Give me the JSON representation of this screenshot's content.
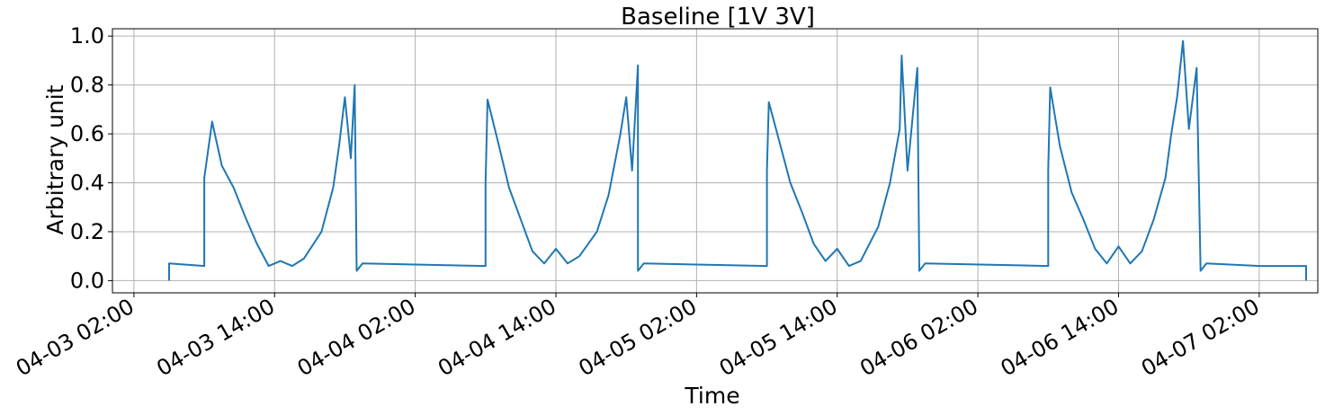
{
  "chart_data": {
    "type": "line",
    "title": "Baseline [1V 3V]",
    "xlabel": "Time",
    "ylabel": "Arbitrary unit",
    "xlim": [
      "2025-04-03T00:10",
      "2025-04-07T07:00"
    ],
    "ylim": [
      -0.05,
      1.03
    ],
    "grid": true,
    "x_ticks": [
      {
        "t": "2025-04-03T02:00",
        "label": "04-03 02:00"
      },
      {
        "t": "2025-04-03T14:00",
        "label": "04-03 14:00"
      },
      {
        "t": "2025-04-04T02:00",
        "label": "04-04 02:00"
      },
      {
        "t": "2025-04-04T14:00",
        "label": "04-04 14:00"
      },
      {
        "t": "2025-04-05T02:00",
        "label": "04-05 02:00"
      },
      {
        "t": "2025-04-05T14:00",
        "label": "04-05 14:00"
      },
      {
        "t": "2025-04-06T02:00",
        "label": "04-06 02:00"
      },
      {
        "t": "2025-04-06T14:00",
        "label": "04-06 14:00"
      },
      {
        "t": "2025-04-07T02:00",
        "label": "04-07 02:00"
      }
    ],
    "y_ticks": [
      0.0,
      0.2,
      0.4,
      0.6,
      0.8,
      1.0
    ],
    "y_tick_labels": [
      "0.0",
      "0.2",
      "0.4",
      "0.6",
      "0.8",
      "1.0"
    ],
    "series": [
      {
        "color": "#1f77b4",
        "points": [
          [
            "2025-04-03T05:00",
            0.0
          ],
          [
            "2025-04-03T05:00",
            0.07
          ],
          [
            "2025-04-03T08:00",
            0.06
          ],
          [
            "2025-04-03T08:00",
            0.42
          ],
          [
            "2025-04-03T08:40",
            0.65
          ],
          [
            "2025-04-03T09:30",
            0.47
          ],
          [
            "2025-04-03T10:30",
            0.38
          ],
          [
            "2025-04-03T11:30",
            0.26
          ],
          [
            "2025-04-03T12:30",
            0.15
          ],
          [
            "2025-04-03T13:30",
            0.06
          ],
          [
            "2025-04-03T14:30",
            0.08
          ],
          [
            "2025-04-03T15:30",
            0.06
          ],
          [
            "2025-04-03T16:30",
            0.09
          ],
          [
            "2025-04-03T18:00",
            0.2
          ],
          [
            "2025-04-03T19:00",
            0.38
          ],
          [
            "2025-04-03T19:30",
            0.55
          ],
          [
            "2025-04-03T20:00",
            0.75
          ],
          [
            "2025-04-03T20:30",
            0.5
          ],
          [
            "2025-04-03T20:50",
            0.8
          ],
          [
            "2025-04-03T21:00",
            0.04
          ],
          [
            "2025-04-03T21:30",
            0.07
          ],
          [
            "2025-04-04T08:00",
            0.06
          ],
          [
            "2025-04-04T08:00",
            0.4
          ],
          [
            "2025-04-04T08:10",
            0.74
          ],
          [
            "2025-04-04T09:00",
            0.58
          ],
          [
            "2025-04-04T10:00",
            0.38
          ],
          [
            "2025-04-04T11:00",
            0.25
          ],
          [
            "2025-04-04T12:00",
            0.12
          ],
          [
            "2025-04-04T13:00",
            0.07
          ],
          [
            "2025-04-04T14:00",
            0.13
          ],
          [
            "2025-04-04T15:00",
            0.07
          ],
          [
            "2025-04-04T16:00",
            0.1
          ],
          [
            "2025-04-04T17:30",
            0.2
          ],
          [
            "2025-04-04T18:30",
            0.35
          ],
          [
            "2025-04-04T19:30",
            0.6
          ],
          [
            "2025-04-04T20:00",
            0.75
          ],
          [
            "2025-04-04T20:30",
            0.45
          ],
          [
            "2025-04-04T21:00",
            0.88
          ],
          [
            "2025-04-04T21:00",
            0.04
          ],
          [
            "2025-04-04T21:30",
            0.07
          ],
          [
            "2025-04-05T08:00",
            0.06
          ],
          [
            "2025-04-05T08:00",
            0.45
          ],
          [
            "2025-04-05T08:10",
            0.73
          ],
          [
            "2025-04-05T09:00",
            0.58
          ],
          [
            "2025-04-05T10:00",
            0.4
          ],
          [
            "2025-04-05T11:00",
            0.28
          ],
          [
            "2025-04-05T12:00",
            0.15
          ],
          [
            "2025-04-05T13:00",
            0.08
          ],
          [
            "2025-04-05T14:00",
            0.13
          ],
          [
            "2025-04-05T15:00",
            0.06
          ],
          [
            "2025-04-05T16:00",
            0.08
          ],
          [
            "2025-04-05T17:30",
            0.22
          ],
          [
            "2025-04-05T18:30",
            0.4
          ],
          [
            "2025-04-05T19:20",
            0.62
          ],
          [
            "2025-04-05T19:30",
            0.92
          ],
          [
            "2025-04-05T20:00",
            0.45
          ],
          [
            "2025-04-05T20:50",
            0.87
          ],
          [
            "2025-04-05T21:00",
            0.04
          ],
          [
            "2025-04-05T21:30",
            0.07
          ],
          [
            "2025-04-06T08:00",
            0.06
          ],
          [
            "2025-04-06T08:00",
            0.45
          ],
          [
            "2025-04-06T08:10",
            0.79
          ],
          [
            "2025-04-06T09:00",
            0.55
          ],
          [
            "2025-04-06T10:00",
            0.36
          ],
          [
            "2025-04-06T11:00",
            0.25
          ],
          [
            "2025-04-06T12:00",
            0.13
          ],
          [
            "2025-04-06T13:00",
            0.07
          ],
          [
            "2025-04-06T14:00",
            0.14
          ],
          [
            "2025-04-06T15:00",
            0.07
          ],
          [
            "2025-04-06T16:00",
            0.12
          ],
          [
            "2025-04-06T17:00",
            0.25
          ],
          [
            "2025-04-06T18:00",
            0.42
          ],
          [
            "2025-04-06T18:30",
            0.6
          ],
          [
            "2025-04-06T19:00",
            0.75
          ],
          [
            "2025-04-06T19:30",
            0.98
          ],
          [
            "2025-04-06T20:00",
            0.62
          ],
          [
            "2025-04-06T20:40",
            0.87
          ],
          [
            "2025-04-06T21:00",
            0.04
          ],
          [
            "2025-04-06T21:30",
            0.07
          ],
          [
            "2025-04-07T02:00",
            0.06
          ],
          [
            "2025-04-07T06:00",
            0.06
          ],
          [
            "2025-04-07T06:00",
            0.0
          ]
        ]
      }
    ]
  }
}
